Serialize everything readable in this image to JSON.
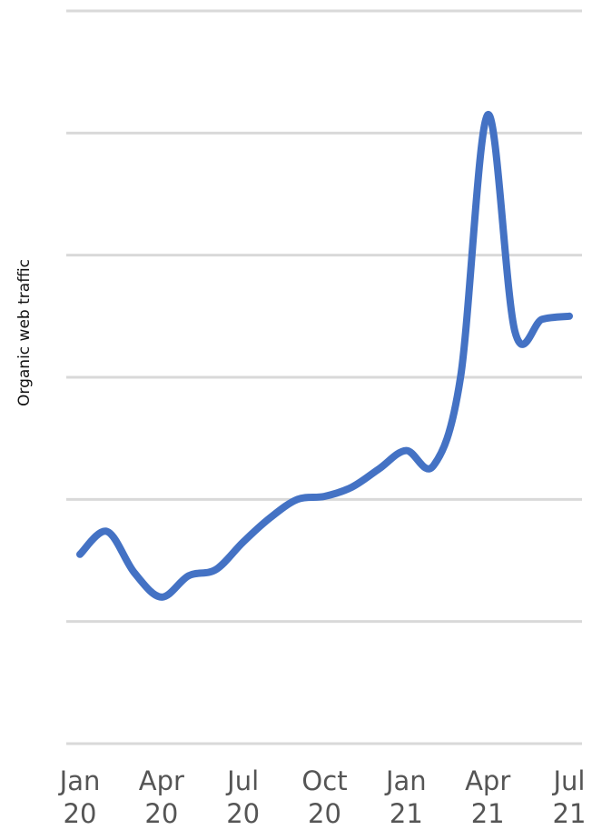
{
  "chart_data": {
    "type": "line",
    "title": "",
    "xlabel": "",
    "ylabel": "Organic web traffic",
    "x": [
      "2020-01",
      "2020-02",
      "2020-03",
      "2020-04",
      "2020-05",
      "2020-06",
      "2020-07",
      "2020-08",
      "2020-09",
      "2020-10",
      "2020-11",
      "2020-12",
      "2021-01",
      "2021-02",
      "2021-03",
      "2021-04",
      "2021-05",
      "2021-06",
      "2021-07"
    ],
    "x_ticks": [
      {
        "x": "2020-01",
        "month": "Jan",
        "year": "20"
      },
      {
        "x": "2020-04",
        "month": "Apr",
        "year": "20"
      },
      {
        "x": "2020-07",
        "month": "Jul",
        "year": "20"
      },
      {
        "x": "2020-10",
        "month": "Oct",
        "year": "20"
      },
      {
        "x": "2021-01",
        "month": "Jan",
        "year": "21"
      },
      {
        "x": "2021-04",
        "month": "Apr",
        "year": "21"
      },
      {
        "x": "2021-07",
        "month": "Jul",
        "year": "21"
      }
    ],
    "series": [
      {
        "values": [
          2.2,
          2.95,
          1.6,
          0.8,
          1.5,
          1.7,
          2.6,
          3.4,
          4.0,
          4.1,
          4.4,
          5.0,
          5.6,
          5.1,
          8.0,
          16.6,
          9.5,
          9.9,
          10.0
        ]
      }
    ],
    "ylim": [
      -4,
      20
    ],
    "y_gridlines": [
      -4,
      0,
      4,
      8,
      12,
      16,
      20
    ],
    "y_tick_labels_shown": false,
    "grid": true,
    "legend": "none",
    "colors": {
      "line": "#4472c4",
      "grid": "#d9d9d9",
      "tick_text": "#555555",
      "axis_title": "#111111"
    }
  }
}
